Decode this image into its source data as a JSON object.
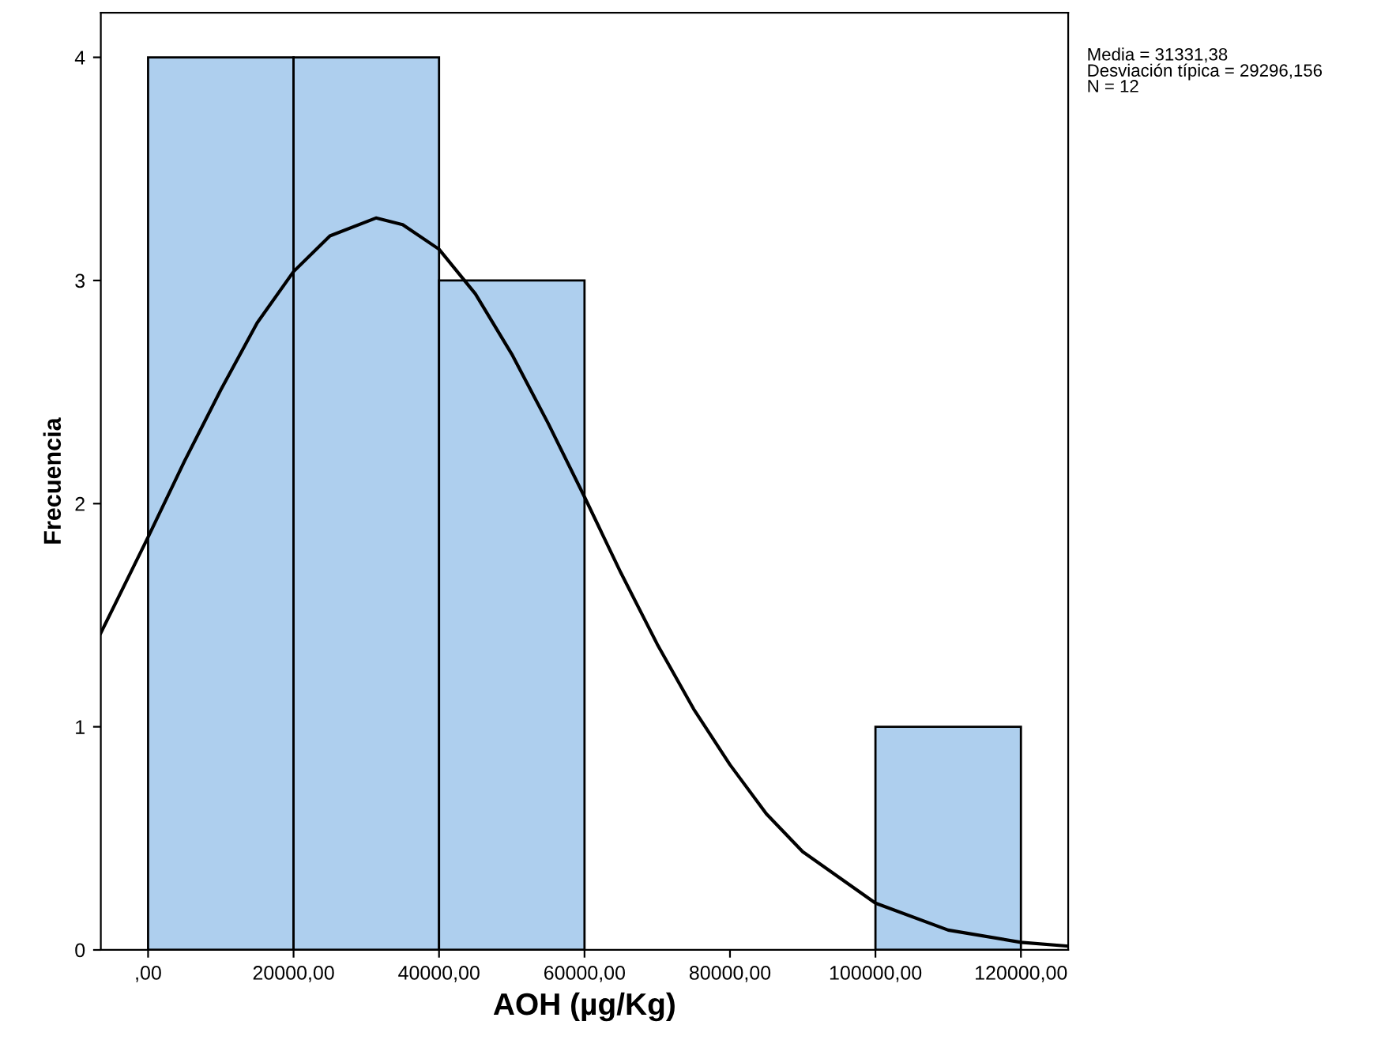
{
  "chart_data": {
    "type": "histogram",
    "xlabel": "AOH (µg/Kg)",
    "ylabel": "Frecuencia",
    "annotations": [
      "Media = 31331,38",
      "Desviación típica = 29296,156",
      "N = 12"
    ],
    "series": [
      {
        "bins": [
          0,
          20000,
          40000,
          60000,
          80000,
          100000,
          120000
        ],
        "values": [
          4,
          4,
          3,
          0,
          0,
          1
        ],
        "color": "#aecfee"
      },
      {
        "type": "line",
        "color": "#000000",
        "x": [
          -6500,
          0,
          5000,
          10000,
          15000,
          20000,
          25000,
          31331,
          35000,
          40000,
          45000,
          50000,
          55000,
          60000,
          65000,
          70000,
          75000,
          80000,
          85000,
          90000,
          100000,
          110000,
          120000,
          126500
        ],
        "values": [
          1.42,
          1.85,
          2.19,
          2.51,
          2.81,
          3.04,
          3.2,
          3.28,
          3.25,
          3.14,
          2.94,
          2.67,
          2.36,
          2.03,
          1.69,
          1.37,
          1.08,
          0.83,
          0.61,
          0.44,
          0.21,
          0.089,
          0.034,
          0.017
        ]
      }
    ],
    "xlim": [
      -6500,
      126500
    ],
    "ylim": [
      0,
      4.2
    ],
    "xticks": [
      {
        "value": 0,
        "label": ",00"
      },
      {
        "value": 20000,
        "label": "20000,00"
      },
      {
        "value": 40000,
        "label": "40000,00"
      },
      {
        "value": 60000,
        "label": "60000,00"
      },
      {
        "value": 80000,
        "label": "80000,00"
      },
      {
        "value": 100000,
        "label": "100000,00"
      },
      {
        "value": 120000,
        "label": "120000,00"
      }
    ],
    "yticks": [
      0,
      1,
      2,
      3,
      4
    ],
    "grid": false,
    "legend": false
  }
}
